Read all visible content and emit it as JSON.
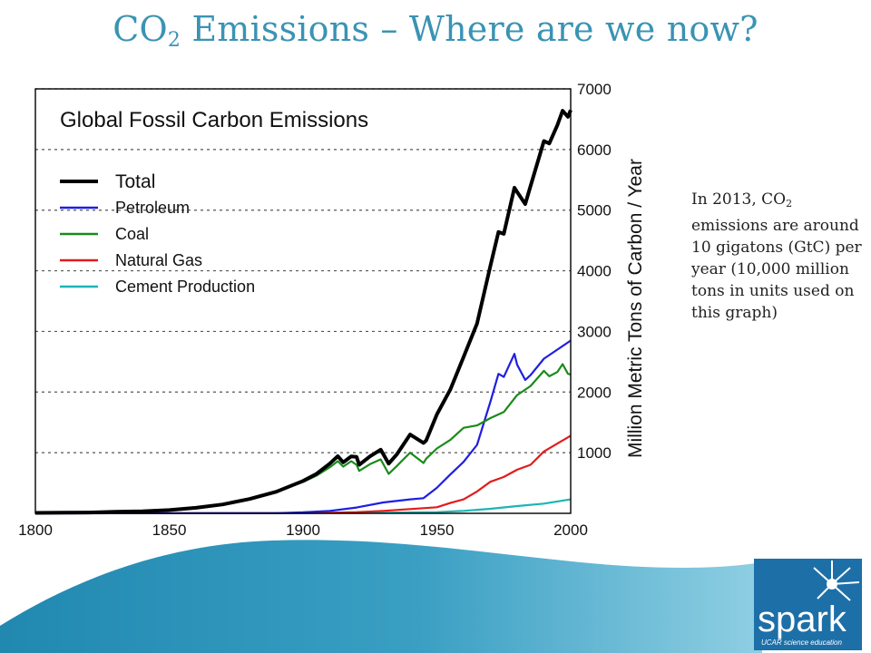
{
  "slide": {
    "title_pre": "CO",
    "title_sub": "2",
    "title_post": " Emissions – Where are we now?",
    "note_pre": "In 2013, CO",
    "note_sub": "2",
    "note_post": " emissions are around 10 gigatons (GtC) per year (10,000 million tons in units used on this graph)"
  },
  "logo": {
    "word": "spark",
    "tagline": "UCAR science education",
    "icon": "starburst-icon"
  },
  "colors": {
    "title": "#3a93b4",
    "total": "#000000",
    "petroleum": "#1f1fe0",
    "coal": "#1a8a1a",
    "natural_gas": "#e21b1b",
    "cement": "#1cb5b5",
    "wave": "#2c93b8",
    "logo": "#1d6fa8"
  },
  "chart_data": {
    "type": "line",
    "title": "Global Fossil Carbon Emissions",
    "xlabel": "",
    "ylabel": "Million Metric Tons of Carbon / Year",
    "xlim": [
      1800,
      2000
    ],
    "ylim": [
      0,
      7000
    ],
    "x_ticks": [
      1800,
      1850,
      1900,
      1950,
      2000
    ],
    "y_ticks": [
      1000,
      2000,
      3000,
      4000,
      5000,
      6000,
      7000
    ],
    "grid": "horizontal dashed",
    "legend": "top-left",
    "series": [
      {
        "name": "Total",
        "x": [
          1800,
          1810,
          1820,
          1830,
          1840,
          1850,
          1860,
          1870,
          1880,
          1890,
          1900,
          1905,
          1910,
          1913,
          1915,
          1918,
          1920,
          1921,
          1925,
          1929,
          1932,
          1935,
          1940,
          1945,
          1946,
          1950,
          1955,
          1960,
          1965,
          1970,
          1973,
          1975,
          1979,
          1980,
          1983,
          1985,
          1990,
          1992,
          1995,
          1997,
          1999,
          2000
        ],
        "y": [
          8,
          10,
          14,
          25,
          33,
          54,
          91,
          147,
          236,
          356,
          534,
          650,
          819,
          943,
          840,
          940,
          932,
          800,
          940,
          1050,
          820,
          970,
          1300,
          1160,
          1200,
          1630,
          2040,
          2580,
          3130,
          4080,
          4640,
          4610,
          5370,
          5300,
          5100,
          5400,
          6140,
          6100,
          6400,
          6640,
          6540,
          6650
        ]
      },
      {
        "name": "Petroleum",
        "x": [
          1800,
          1870,
          1890,
          1900,
          1910,
          1920,
          1930,
          1940,
          1945,
          1950,
          1955,
          1960,
          1965,
          1970,
          1973,
          1975,
          1979,
          1980,
          1983,
          1985,
          1990,
          1995,
          2000
        ],
        "y": [
          0,
          1,
          3,
          16,
          40,
          95,
          180,
          230,
          250,
          420,
          640,
          850,
          1130,
          1840,
          2300,
          2250,
          2630,
          2450,
          2200,
          2280,
          2550,
          2700,
          2850
        ]
      },
      {
        "name": "Coal",
        "x": [
          1800,
          1810,
          1820,
          1830,
          1840,
          1850,
          1860,
          1870,
          1880,
          1890,
          1900,
          1905,
          1910,
          1913,
          1915,
          1918,
          1920,
          1921,
          1925,
          1929,
          1932,
          1935,
          1940,
          1945,
          1946,
          1950,
          1955,
          1960,
          1965,
          1970,
          1975,
          1980,
          1985,
          1990,
          1992,
          1995,
          1997,
          1999,
          2000
        ],
        "y": [
          8,
          10,
          14,
          25,
          33,
          54,
          91,
          146,
          233,
          353,
          518,
          620,
          760,
          860,
          770,
          860,
          800,
          700,
          810,
          890,
          650,
          780,
          1000,
          830,
          900,
          1070,
          1210,
          1410,
          1450,
          1570,
          1670,
          1950,
          2100,
          2350,
          2260,
          2330,
          2460,
          2300,
          2290
        ]
      },
      {
        "name": "Natural Gas",
        "x": [
          1800,
          1890,
          1900,
          1910,
          1920,
          1930,
          1940,
          1950,
          1955,
          1960,
          1965,
          1970,
          1975,
          1980,
          1985,
          1990,
          1995,
          2000
        ],
        "y": [
          0,
          3,
          4,
          9,
          20,
          40,
          70,
          100,
          170,
          230,
          360,
          520,
          600,
          720,
          800,
          1020,
          1150,
          1280
        ]
      },
      {
        "name": "Cement Production",
        "x": [
          1800,
          1920,
          1930,
          1940,
          1950,
          1960,
          1970,
          1980,
          1990,
          2000
        ],
        "y": [
          0,
          5,
          10,
          15,
          20,
          40,
          75,
          120,
          160,
          230
        ]
      }
    ]
  }
}
